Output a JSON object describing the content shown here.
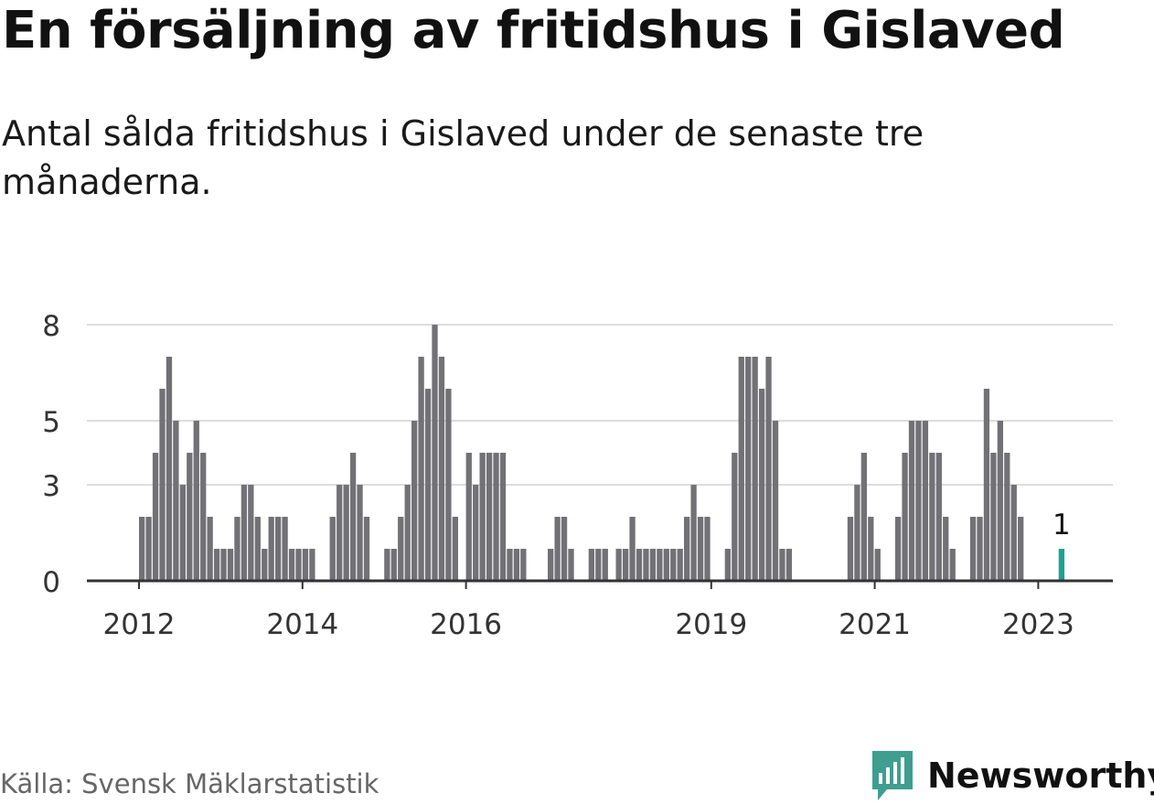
{
  "header": {
    "title": "En försäljning av fritidshus i Gislaved",
    "subtitle": "Antal sålda fritidshus i Gislaved under de senaste tre månaderna."
  },
  "footer": {
    "source": "Källa: Svensk Mäklarstatistik",
    "brand": "Newsworthy"
  },
  "colors": {
    "bar": "#727176",
    "highlight": "#1ba392",
    "brand": "#3f9e8f",
    "grid": "#dddddd",
    "axis": "#333333"
  },
  "chart_data": {
    "type": "bar",
    "x_start": "2012-01",
    "y_ticks": [
      0,
      3,
      5,
      8
    ],
    "ylim": [
      0,
      9
    ],
    "x_tick_labels": [
      "2012",
      "2014",
      "2016",
      "2019",
      "2021",
      "2023"
    ],
    "x_tick_months": [
      "2012-01",
      "2014-01",
      "2016-01",
      "2019-01",
      "2021-01",
      "2023-01"
    ],
    "grid": true,
    "values": [
      2,
      2,
      4,
      6,
      7,
      5,
      3,
      4,
      5,
      4,
      2,
      1,
      1,
      1,
      2,
      3,
      3,
      2,
      1,
      2,
      2,
      2,
      1,
      1,
      1,
      1,
      0,
      0,
      2,
      3,
      3,
      4,
      3,
      2,
      0,
      0,
      1,
      1,
      2,
      3,
      5,
      7,
      6,
      8,
      7,
      6,
      2,
      0,
      4,
      3,
      4,
      4,
      4,
      4,
      1,
      1,
      1,
      0,
      0,
      0,
      1,
      2,
      2,
      1,
      0,
      0,
      1,
      1,
      1,
      0,
      1,
      1,
      2,
      1,
      1,
      1,
      1,
      1,
      1,
      1,
      2,
      3,
      2,
      2,
      0,
      0,
      1,
      4,
      7,
      7,
      7,
      6,
      7,
      5,
      1,
      1,
      0,
      0,
      0,
      0,
      0,
      0,
      0,
      0,
      2,
      3,
      4,
      2,
      1,
      0,
      0,
      2,
      4,
      5,
      5,
      5,
      4,
      4,
      2,
      1,
      0,
      0,
      2,
      2,
      6,
      4,
      5,
      4,
      3,
      2,
      0,
      0,
      0,
      0,
      0,
      1
    ],
    "highlight_label": "1"
  }
}
